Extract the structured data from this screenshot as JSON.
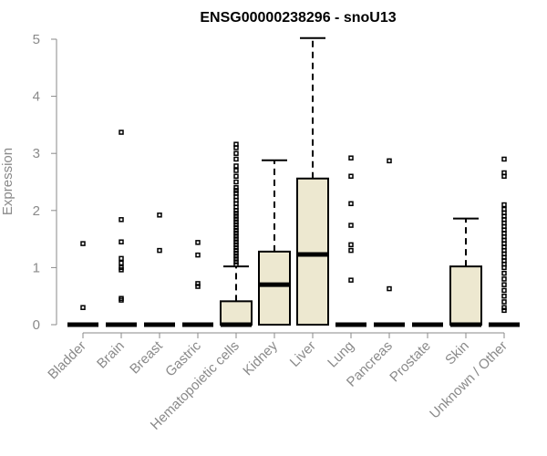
{
  "chart_data": {
    "type": "box",
    "title": "ENSG00000238296 - snoU13",
    "xlabel": "",
    "ylabel": "Expression",
    "ylim": [
      0,
      5
    ],
    "yticks": [
      0,
      1,
      2,
      3,
      4,
      5
    ],
    "grid": false,
    "legend": "none",
    "box_color": "#ede8d0",
    "line_color": "#000000",
    "axis_color": "#8a8a8a",
    "categories": [
      "Bladder",
      "Brain",
      "Breast",
      "Gastric",
      "Hematopoietic cells",
      "Kidney",
      "Liver",
      "Lung",
      "Pancreas",
      "Prostate",
      "Skin",
      "Unknown / Other"
    ],
    "boxes": [
      {
        "category": "Bladder",
        "min": 0,
        "q1": 0,
        "median": 0,
        "q3": 0,
        "max": 0,
        "outliers": [
          1.42,
          0.3
        ]
      },
      {
        "category": "Brain",
        "min": 0,
        "q1": 0,
        "median": 0,
        "q3": 0,
        "max": 0,
        "outliers": [
          3.37,
          1.84,
          1.45,
          1.16,
          1.08,
          1.0,
          0.96,
          0.46,
          0.43
        ]
      },
      {
        "category": "Breast",
        "min": 0,
        "q1": 0,
        "median": 0,
        "q3": 0,
        "max": 0,
        "outliers": [
          1.92,
          1.3
        ]
      },
      {
        "category": "Gastric",
        "min": 0,
        "q1": 0,
        "median": 0,
        "q3": 0,
        "max": 0,
        "outliers": [
          1.44,
          1.22,
          0.72,
          0.67
        ]
      },
      {
        "category": "Hematopoietic cells",
        "min": 0,
        "q1": 0,
        "median": 0,
        "q3": 0.41,
        "max": 1.02,
        "outliers": [
          3.16,
          3.1,
          3.0,
          2.9,
          2.78,
          2.7,
          2.6,
          2.5,
          2.4,
          2.35,
          2.3,
          2.24,
          2.18,
          2.12,
          2.06,
          2.0,
          1.95,
          1.9,
          1.85,
          1.8,
          1.75,
          1.7,
          1.65,
          1.6,
          1.55,
          1.5,
          1.45,
          1.4,
          1.35,
          1.3,
          1.25,
          1.2,
          1.15,
          1.1,
          1.05
        ]
      },
      {
        "category": "Kidney",
        "min": 0,
        "q1": 0,
        "median": 0.7,
        "q3": 1.28,
        "max": 2.88,
        "outliers": []
      },
      {
        "category": "Liver",
        "min": 0,
        "q1": 0,
        "median": 1.23,
        "q3": 2.56,
        "max": 5.02,
        "outliers": []
      },
      {
        "category": "Lung",
        "min": 0,
        "q1": 0,
        "median": 0,
        "q3": 0,
        "max": 0,
        "outliers": [
          2.92,
          2.6,
          2.12,
          1.74,
          1.4,
          1.3,
          0.78
        ]
      },
      {
        "category": "Pancreas",
        "min": 0,
        "q1": 0,
        "median": 0,
        "q3": 0,
        "max": 0,
        "outliers": [
          2.87,
          0.63
        ]
      },
      {
        "category": "Prostate",
        "min": 0,
        "q1": 0,
        "median": 0,
        "q3": 0,
        "max": 0,
        "outliers": []
      },
      {
        "category": "Skin",
        "min": 0,
        "q1": 0,
        "median": 0,
        "q3": 1.02,
        "max": 1.86,
        "outliers": []
      },
      {
        "category": "Unknown / Other",
        "min": 0,
        "q1": 0,
        "median": 0,
        "q3": 0,
        "max": 0,
        "outliers": [
          2.9,
          2.66,
          2.6,
          2.1,
          2.02,
          1.96,
          1.9,
          1.84,
          1.78,
          1.72,
          1.66,
          1.6,
          1.54,
          1.48,
          1.42,
          1.36,
          1.3,
          1.24,
          1.18,
          1.12,
          1.06,
          1.0,
          0.9,
          0.8,
          0.7,
          0.6,
          0.5,
          0.4,
          0.3,
          0.25
        ]
      }
    ]
  }
}
